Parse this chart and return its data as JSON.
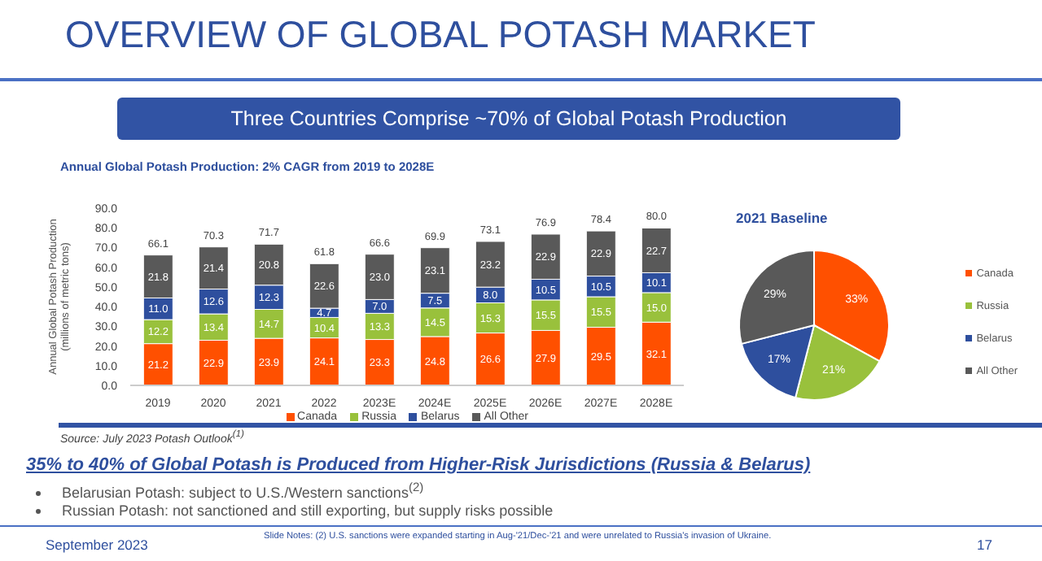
{
  "chart_data": [
    {
      "type": "bar",
      "title": "Annual Global Potash Production: 2% CAGR from 2019 to 2028E",
      "ylabel": "Annual Global Potash Production (millions of metric tons)",
      "categories": [
        "2019",
        "2020",
        "2021",
        "2022",
        "2023E",
        "2024E",
        "2025E",
        "2026E",
        "2027E",
        "2028E"
      ],
      "series": [
        {
          "name": "Canada",
          "color": "#ff5000",
          "values": [
            21.2,
            22.9,
            23.9,
            24.1,
            23.3,
            24.8,
            26.6,
            27.9,
            29.5,
            32.1
          ],
          "value_labels": [
            "21.2",
            "22.9",
            "23.9",
            "24.1",
            "23.3",
            "24.8",
            "26.6",
            "27.9",
            "29.5",
            "32.1"
          ]
        },
        {
          "name": "Russia",
          "color": "#99c13c",
          "values": [
            12.2,
            13.4,
            14.7,
            10.4,
            13.3,
            14.5,
            15.3,
            15.5,
            15.5,
            15.0
          ],
          "value_labels": [
            "12.2",
            "13.4",
            "14.7",
            "10.4",
            "13.3",
            "14.5",
            "15.3",
            "15.5",
            "15.5",
            "15.0"
          ]
        },
        {
          "name": "Belarus",
          "color": "#2e4f9e",
          "values": [
            11.0,
            12.6,
            12.3,
            4.7,
            7.0,
            7.5,
            8.0,
            10.5,
            10.5,
            10.1
          ],
          "value_labels": [
            "11.0",
            "12.6",
            "12.3",
            "4.7",
            "7.0",
            "7.5",
            "8.0",
            "10.5",
            "10.5",
            "10.1"
          ]
        },
        {
          "name": "All Other",
          "color": "#595959",
          "values": [
            21.8,
            21.4,
            20.8,
            22.6,
            23.0,
            23.1,
            23.2,
            22.9,
            22.9,
            22.7
          ],
          "value_labels": [
            "21.8",
            "21.4",
            "20.8",
            "22.6",
            "23.0",
            "23.1",
            "23.2",
            "22.9",
            "22.9",
            "22.7"
          ]
        }
      ],
      "stacked": true,
      "totals": [
        "66.1",
        "70.3",
        "71.7",
        "61.8",
        "66.6",
        "69.9",
        "73.1",
        "76.9",
        "78.4",
        "80.0"
      ],
      "ylim": [
        0,
        90
      ],
      "yticks": [
        {
          "value": 0,
          "label": "0.0"
        },
        {
          "value": 10,
          "label": "10.0"
        },
        {
          "value": 20,
          "label": "20.0"
        },
        {
          "value": 30,
          "label": "30.0"
        },
        {
          "value": 40,
          "label": "40.0"
        },
        {
          "value": 50,
          "label": "50.0"
        },
        {
          "value": 60,
          "label": "60.0"
        },
        {
          "value": 70,
          "label": "70.0"
        },
        {
          "value": 80,
          "label": "80.0"
        },
        {
          "value": 90,
          "label": "90.0"
        }
      ],
      "grid": false,
      "legend": "bottom",
      "annotations": [
        "OVERVIEW OF GLOBAL POTASH MARKET",
        "Three Countries Comprise ~70% of Global Potash Production",
        "Source: July 2023 Potash Outlook$^{(1)}$",
        "35% to 40% of Global Potash is Produced from Higher-Risk Jurisdictions (Russia & Belarus)",
        "Belarusian Potash: subject to U.S./Western sanctions$^{(2)}$",
        "Russian Potash: not sanctioned and still exporting, but supply risks possible",
        "September 2023",
        "Slide Notes: (2) U.S. sanctions were expanded starting in Aug-'21/Dec-'21 and were unrelated to Russia's invasion of Ukraine.",
        "17"
      ]
    },
    {
      "type": "pie",
      "title": "2021 Baseline",
      "categories": [
        "Canada",
        "Russia",
        "Belarus",
        "All Other"
      ],
      "values": [
        33,
        21,
        17,
        29
      ],
      "colors": [
        "#ff5000",
        "#99c13c",
        "#2e4f9e",
        "#595959"
      ],
      "value_labels": [
        "33%",
        "21%",
        "17%",
        "29%"
      ],
      "legend": "right"
    }
  ]
}
